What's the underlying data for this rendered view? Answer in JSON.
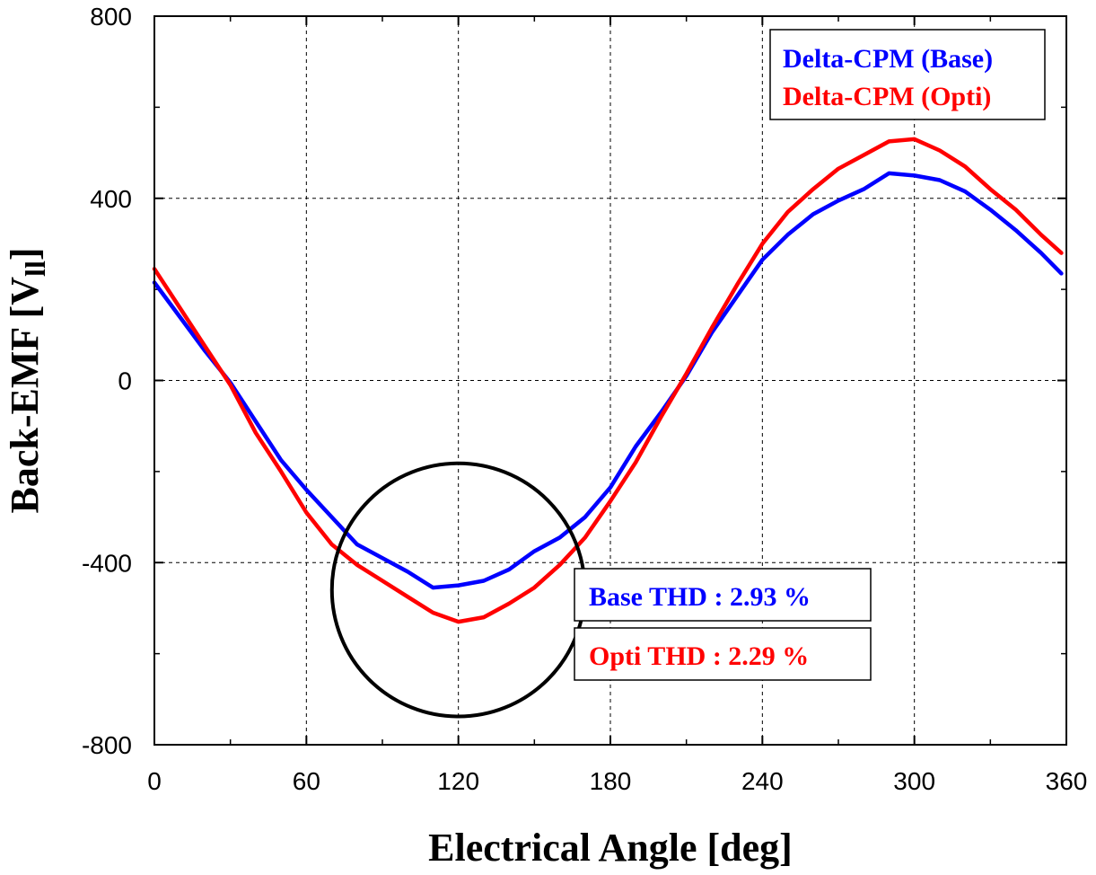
{
  "chart_data": {
    "type": "line",
    "xlabel": "Electrical Angle [deg]",
    "ylabel": "Back-EMF [V",
    "ylabel_sub": "ll",
    "ylabel_end": "]",
    "xlim": [
      0,
      360
    ],
    "ylim": [
      -800,
      800
    ],
    "xticks": [
      0,
      60,
      120,
      180,
      240,
      300,
      360
    ],
    "yticks": [
      -800,
      -400,
      0,
      400,
      800
    ],
    "x_tick_labels": [
      "0",
      "60",
      "120",
      "180",
      "240",
      "300",
      "360"
    ],
    "y_tick_labels": [
      "-800",
      "-400",
      "0",
      "400",
      "800"
    ],
    "grid": true,
    "legend_position": "top-right",
    "series": [
      {
        "name": "Delta-CPM (Base)",
        "color": "#0000ff",
        "x": [
          0,
          10,
          20,
          30,
          40,
          50,
          60,
          70,
          80,
          90,
          100,
          110,
          120,
          130,
          140,
          150,
          160,
          170,
          180,
          190,
          200,
          210,
          220,
          230,
          240,
          250,
          260,
          270,
          280,
          290,
          300,
          310,
          320,
          330,
          340,
          350,
          358
        ],
        "values": [
          215,
          140,
          65,
          -5,
          -90,
          -175,
          -240,
          -300,
          -360,
          -390,
          -420,
          -455,
          -450,
          -440,
          -415,
          -375,
          -345,
          -300,
          -235,
          -145,
          -70,
          10,
          105,
          185,
          265,
          320,
          365,
          395,
          420,
          455,
          450,
          440,
          415,
          375,
          330,
          280,
          235
        ]
      },
      {
        "name": "Delta-CPM (Opti)",
        "color": "#ff0000",
        "x": [
          0,
          10,
          20,
          30,
          40,
          50,
          60,
          70,
          80,
          90,
          100,
          110,
          120,
          130,
          140,
          150,
          160,
          170,
          180,
          190,
          200,
          210,
          220,
          230,
          240,
          250,
          260,
          270,
          280,
          290,
          300,
          310,
          320,
          330,
          340,
          350,
          358
        ],
        "values": [
          245,
          160,
          75,
          -10,
          -115,
          -200,
          -290,
          -360,
          -405,
          -440,
          -475,
          -510,
          -530,
          -520,
          -490,
          -455,
          -405,
          -345,
          -265,
          -180,
          -80,
          15,
          115,
          210,
          300,
          370,
          420,
          465,
          495,
          525,
          530,
          505,
          470,
          420,
          375,
          320,
          280
        ]
      }
    ],
    "annotations": [
      {
        "text": "Base THD : 2.93 %",
        "color": "#0000ff"
      },
      {
        "text": "Opti THD : 2.29 %",
        "color": "#ff0000"
      }
    ],
    "circle_annotation": {
      "center_x": 120,
      "center_y": -460,
      "radius_deg": 40
    }
  }
}
